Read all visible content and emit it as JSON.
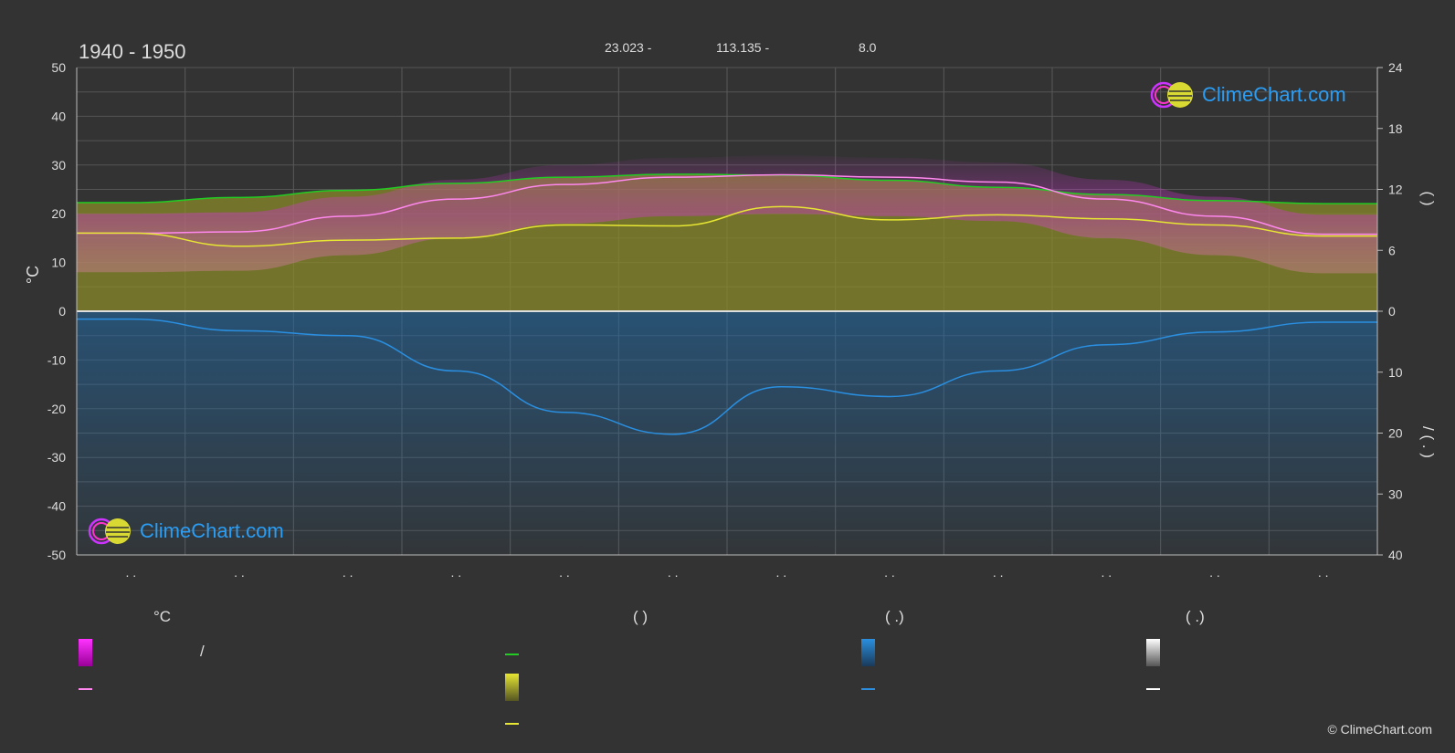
{
  "header": {
    "period": "1940 - 1950",
    "latitude": "23.023 -",
    "longitude": "113.135 -",
    "elevation": "8.0"
  },
  "brand": {
    "logo_text": "ClimeChart.com",
    "copyright": "© ClimeChart.com",
    "color": "#2a9df4"
  },
  "chart_data": {
    "type": "area",
    "months": 12,
    "x_tick_labels": [
      ". .",
      ". .",
      ". .",
      ". .",
      ". .",
      ". .",
      ". .",
      ". .",
      ". .",
      ". .",
      ". .",
      ". ."
    ],
    "left_axis": {
      "unit": "°C",
      "range": [
        -50,
        50
      ],
      "ticks": [
        50,
        40,
        30,
        20,
        10,
        0,
        -10,
        -20,
        -30,
        -40,
        -50
      ]
    },
    "right_axis_top": {
      "label": "( )",
      "range": [
        0,
        24
      ],
      "ticks": [
        24,
        18,
        12,
        6,
        0
      ]
    },
    "right_axis_bottom": {
      "label": "/ ( . )",
      "range": [
        0,
        40
      ],
      "ticks": [
        0,
        10,
        20,
        30,
        40
      ]
    },
    "grid": true,
    "series": [
      {
        "key": "daylight",
        "color": "#22cc22",
        "axis": "right_top",
        "values": [
          10.7,
          11.2,
          11.9,
          12.6,
          13.2,
          13.5,
          13.4,
          12.9,
          12.2,
          11.5,
          10.9,
          10.6
        ]
      },
      {
        "key": "temp_mean",
        "color": "#ff88ee",
        "axis": "left",
        "values": [
          16,
          16.3,
          19.5,
          23,
          26,
          27.5,
          28,
          27.5,
          26.5,
          23,
          19.5,
          15.8
        ]
      },
      {
        "key": "sunshine",
        "color": "#e6e633",
        "axis": "right_top",
        "values": [
          7.7,
          6.4,
          7.0,
          7.2,
          8.5,
          8.4,
          10.3,
          9.0,
          9.5,
          9.1,
          8.5,
          7.4
        ]
      },
      {
        "key": "precipitation",
        "color": "#2a8fe0",
        "axis": "right_bottom",
        "values": [
          1.3,
          3.2,
          4.0,
          9.8,
          16.6,
          20.2,
          12.4,
          14.0,
          9.8,
          5.5,
          3.4,
          1.8
        ]
      }
    ]
  },
  "legend": {
    "temp_heading": "°C",
    "sun_heading": "( )",
    "rain_heading": "( .)",
    "snow_heading": "( .)",
    "temp_range_label": "/",
    "colors": {
      "temp_range": "#ff33ff",
      "temp_mean": "#ff88ee",
      "daylight": "#22cc22",
      "sunshine_range": "#e6e633",
      "sunshine": "#e6e633",
      "rain_range": "#2a8fe0",
      "rain": "#2a8fe0",
      "snow_range": "#ffffff",
      "snow": "#ffffff"
    }
  }
}
